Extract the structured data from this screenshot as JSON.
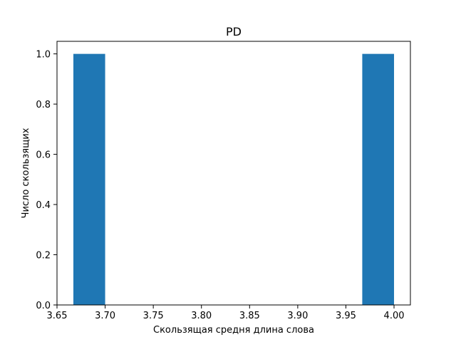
{
  "chart_data": {
    "type": "bar",
    "title": "PD",
    "xlabel": "Скользящая средня длина слова",
    "ylabel": "Число скользящих",
    "xlim": [
      3.65,
      4.017
    ],
    "ylim": [
      0,
      1.05
    ],
    "xticks": [
      3.65,
      3.7,
      3.75,
      3.8,
      3.85,
      3.9,
      3.95,
      4.0
    ],
    "xtick_labels": [
      "3.65",
      "3.70",
      "3.75",
      "3.80",
      "3.85",
      "3.90",
      "3.95",
      "4.00"
    ],
    "yticks": [
      0,
      0.2,
      0.4,
      0.6,
      0.8,
      1.0
    ],
    "ytick_labels": [
      "0.0",
      "0.2",
      "0.4",
      "0.6",
      "0.8",
      "1.0"
    ],
    "bins": [
      {
        "x0": 3.667,
        "x1": 3.7,
        "value": 1
      },
      {
        "x0": 3.967,
        "x1": 4.0,
        "value": 1
      }
    ],
    "grid": false,
    "bar_color": "#1f77b4"
  }
}
